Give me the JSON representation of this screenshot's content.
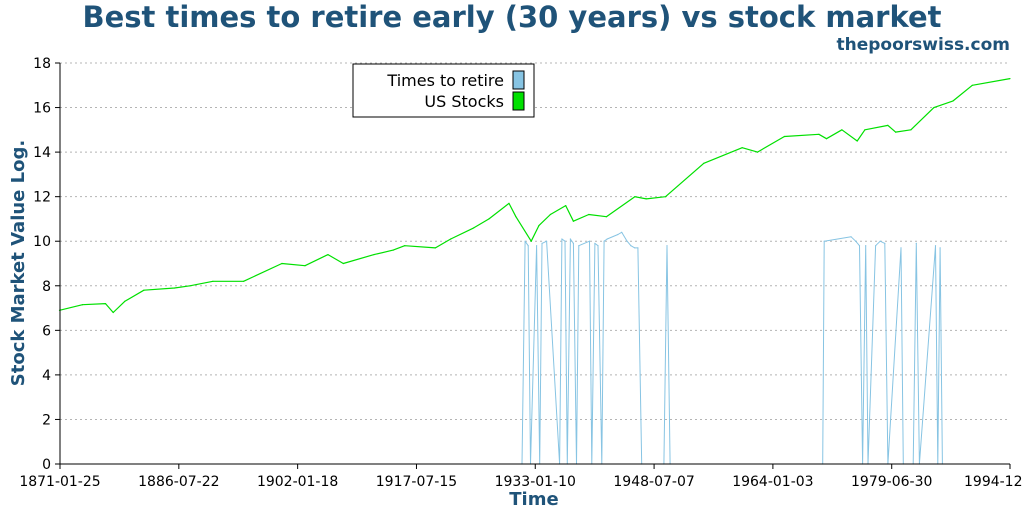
{
  "chart_data": {
    "type": "line",
    "title": "Best times to retire early (30 years) vs stock market",
    "source_credit": "thepoorswiss.com",
    "xlabel": "Time",
    "ylabel": "Stock Market Value Log.",
    "ylim": [
      0,
      18
    ],
    "yticks": [
      0,
      2,
      4,
      6,
      8,
      10,
      12,
      14,
      16,
      18
    ],
    "xlim": [
      "1871-01-25",
      "1994-12"
    ],
    "xticks": [
      "1871-01-25",
      "1886-07-22",
      "1902-01-18",
      "1917-07-15",
      "1933-01-10",
      "1948-07-07",
      "1964-01-03",
      "1979-06-30",
      "1994-12"
    ],
    "grid": "horizontal dotted",
    "legend_position": "top-center",
    "series": [
      {
        "name": "US Stocks",
        "color": "#00e000",
        "x": [
          1871.0,
          1874.0,
          1877.0,
          1878.0,
          1879.5,
          1882.0,
          1886.0,
          1888.0,
          1891.0,
          1895.0,
          1900.0,
          1903.0,
          1906.0,
          1908.0,
          1912.0,
          1914.5,
          1916.0,
          1920.0,
          1922.0,
          1925.0,
          1927.0,
          1929.6,
          1930.5,
          1932.5,
          1933.5,
          1935.0,
          1937.0,
          1938.0,
          1940.0,
          1942.3,
          1946.0,
          1947.5,
          1950.0,
          1955.0,
          1960.0,
          1962.0,
          1965.5,
          1970.0,
          1971.0,
          1973.0,
          1975.0,
          1976.0,
          1979.0,
          1980.0,
          1982.0,
          1985.0,
          1987.5,
          1990.0,
          1994.9
        ],
        "values": [
          6.9,
          7.15,
          7.2,
          6.8,
          7.3,
          7.8,
          7.9,
          8.0,
          8.2,
          8.2,
          9.0,
          8.9,
          9.4,
          9.0,
          9.4,
          9.6,
          9.8,
          9.7,
          10.1,
          10.6,
          11.0,
          11.7,
          11.1,
          10.0,
          10.7,
          11.2,
          11.6,
          10.9,
          11.2,
          11.1,
          12.0,
          11.9,
          12.0,
          13.5,
          14.2,
          14.0,
          14.7,
          14.8,
          14.6,
          15.0,
          14.5,
          15.0,
          15.2,
          14.9,
          15.0,
          16.0,
          16.3,
          17.0,
          17.3
        ]
      },
      {
        "name": "Times to retire",
        "color": "#87c4e3",
        "x": [
          1931.3,
          1931.7,
          1932.1,
          1932.4,
          1933.2,
          1933.6,
          1933.9,
          1934.5,
          1936.2,
          1936.5,
          1936.9,
          1937.2,
          1937.6,
          1938.0,
          1938.4,
          1938.7,
          1940.1,
          1940.4,
          1940.8,
          1941.2,
          1941.7,
          1942.0,
          1942.4,
          1943.8,
          1944.3,
          1945.0,
          1945.5,
          1946.0,
          1946.4,
          1946.9,
          1949.8,
          1950.2,
          1950.6,
          1970.5,
          1970.7,
          1974.2,
          1974.8,
          1975.3,
          1975.7,
          1976.1,
          1976.4,
          1977.4,
          1978.0,
          1978.6,
          1979.0,
          1980.7,
          1981.0,
          1982.3,
          1982.7,
          1983.1,
          1985.2,
          1985.5,
          1985.8,
          1986.1
        ],
        "values": [
          0.0,
          10.0,
          9.8,
          0.0,
          9.8,
          0.0,
          9.9,
          10.0,
          0.0,
          10.1,
          10.0,
          0.0,
          10.1,
          9.9,
          0.0,
          9.8,
          10.0,
          0.0,
          9.9,
          9.8,
          0.0,
          10.0,
          10.1,
          10.3,
          10.4,
          10.0,
          9.8,
          9.7,
          9.7,
          0.0,
          0.0,
          9.8,
          0.0,
          0.0,
          10.0,
          10.2,
          10.0,
          9.8,
          0.0,
          9.8,
          0.0,
          9.8,
          10.0,
          9.9,
          0.0,
          9.7,
          0.0,
          0.0,
          9.9,
          0.0,
          9.8,
          0.0,
          9.7,
          0.0
        ]
      }
    ]
  }
}
